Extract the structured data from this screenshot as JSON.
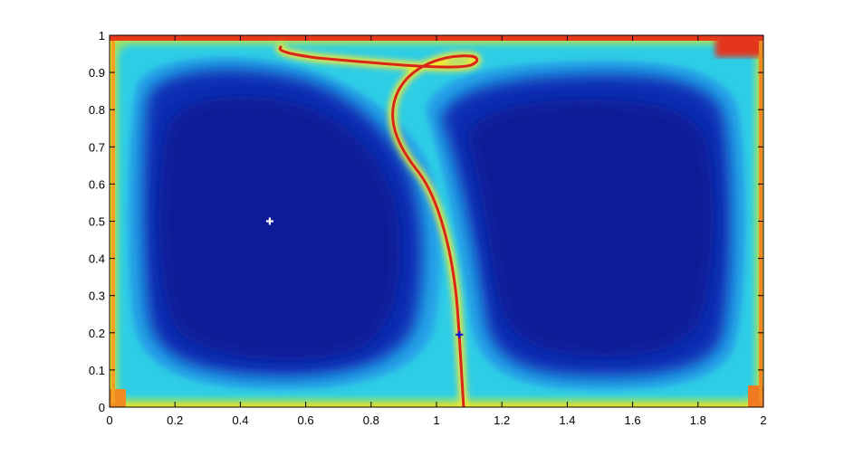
{
  "chart_data": {
    "type": "heatmap",
    "title": "",
    "xlabel": "",
    "ylabel": "",
    "xlim": [
      0,
      2
    ],
    "ylim": [
      0,
      1
    ],
    "x_ticks": [
      "0",
      "0.2",
      "0.4",
      "0.6",
      "0.8",
      "1",
      "1.2",
      "1.4",
      "1.6",
      "1.8",
      "2"
    ],
    "y_ticks": [
      "0",
      "0.1",
      "0.2",
      "0.3",
      "0.4",
      "0.5",
      "0.6",
      "0.7",
      "0.8",
      "0.9",
      "1"
    ],
    "colormap": "jet",
    "grid": false,
    "colors": {
      "low": "#0a1f9e",
      "mid": "#27c8e8",
      "high": "#e2261b"
    },
    "markers": [
      {
        "name": "",
        "x": 0.49,
        "y": 0.5,
        "color": "#ffffff",
        "symbol": "plus"
      },
      {
        "name": "",
        "x": 1.07,
        "y": 0.195,
        "color": "#1010d8",
        "symbol": "plus"
      }
    ]
  }
}
